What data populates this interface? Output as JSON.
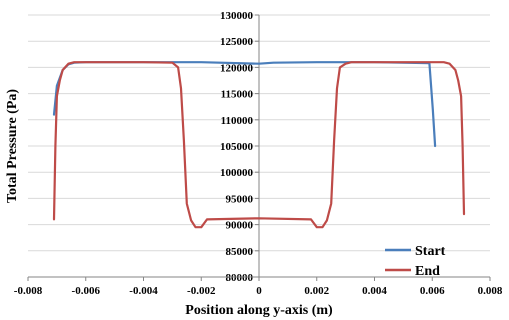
{
  "chart_data": {
    "type": "line",
    "title": "",
    "xlabel": "Position along y-axis (m)",
    "ylabel": "Total Pressure (Pa)",
    "xlim": [
      -0.008,
      0.008
    ],
    "ylim": [
      80000,
      130000
    ],
    "x_ticks": [
      "-0.008",
      "-0.006",
      "-0.004",
      "-0.002",
      "0",
      "0.002",
      "0.004",
      "0.006",
      "0.008"
    ],
    "y_ticks": [
      "80000",
      "85000",
      "90000",
      "95000",
      "100000",
      "105000",
      "110000",
      "115000",
      "120000",
      "125000",
      "130000"
    ],
    "grid": "horizontal",
    "legend_position": "bottom-right",
    "series": [
      {
        "name": "Start",
        "color": "#4a7ebb",
        "x": [
          -0.0071,
          -0.007,
          -0.0068,
          -0.0066,
          -0.0064,
          -0.006,
          -0.004,
          -0.002,
          0,
          0.0005,
          0.002,
          0.004,
          0.0059,
          0.00602,
          0.0061
        ],
        "y": [
          111000,
          116500,
          119500,
          120600,
          120900,
          121000,
          121000,
          121000,
          120700,
          120900,
          121000,
          121000,
          120800,
          112000,
          105000
        ]
      },
      {
        "name": "End",
        "color": "#be4b48",
        "x": [
          -0.0071,
          -0.00705,
          -0.007,
          -0.0069,
          -0.0068,
          -0.0066,
          -0.0064,
          -0.004,
          -0.003,
          -0.0028,
          -0.0027,
          -0.0026,
          -0.0025,
          -0.00235,
          -0.0022,
          -0.002,
          -0.0018,
          0,
          0.0018,
          0.002,
          0.0022,
          0.00235,
          0.0025,
          0.0026,
          0.0027,
          0.0028,
          0.003,
          0.0032,
          0.004,
          0.0064,
          0.0066,
          0.0068,
          0.0069,
          0.007,
          0.00705,
          0.0071
        ],
        "y": [
          91000,
          105000,
          114500,
          117500,
          119500,
          120700,
          121000,
          121000,
          120900,
          120000,
          116000,
          106000,
          94000,
          90800,
          89500,
          89500,
          91000,
          91200,
          91000,
          89500,
          89500,
          90800,
          94000,
          106000,
          116000,
          120000,
          120700,
          121000,
          121000,
          121000,
          120700,
          119500,
          117500,
          114500,
          105000,
          92000
        ]
      }
    ]
  }
}
